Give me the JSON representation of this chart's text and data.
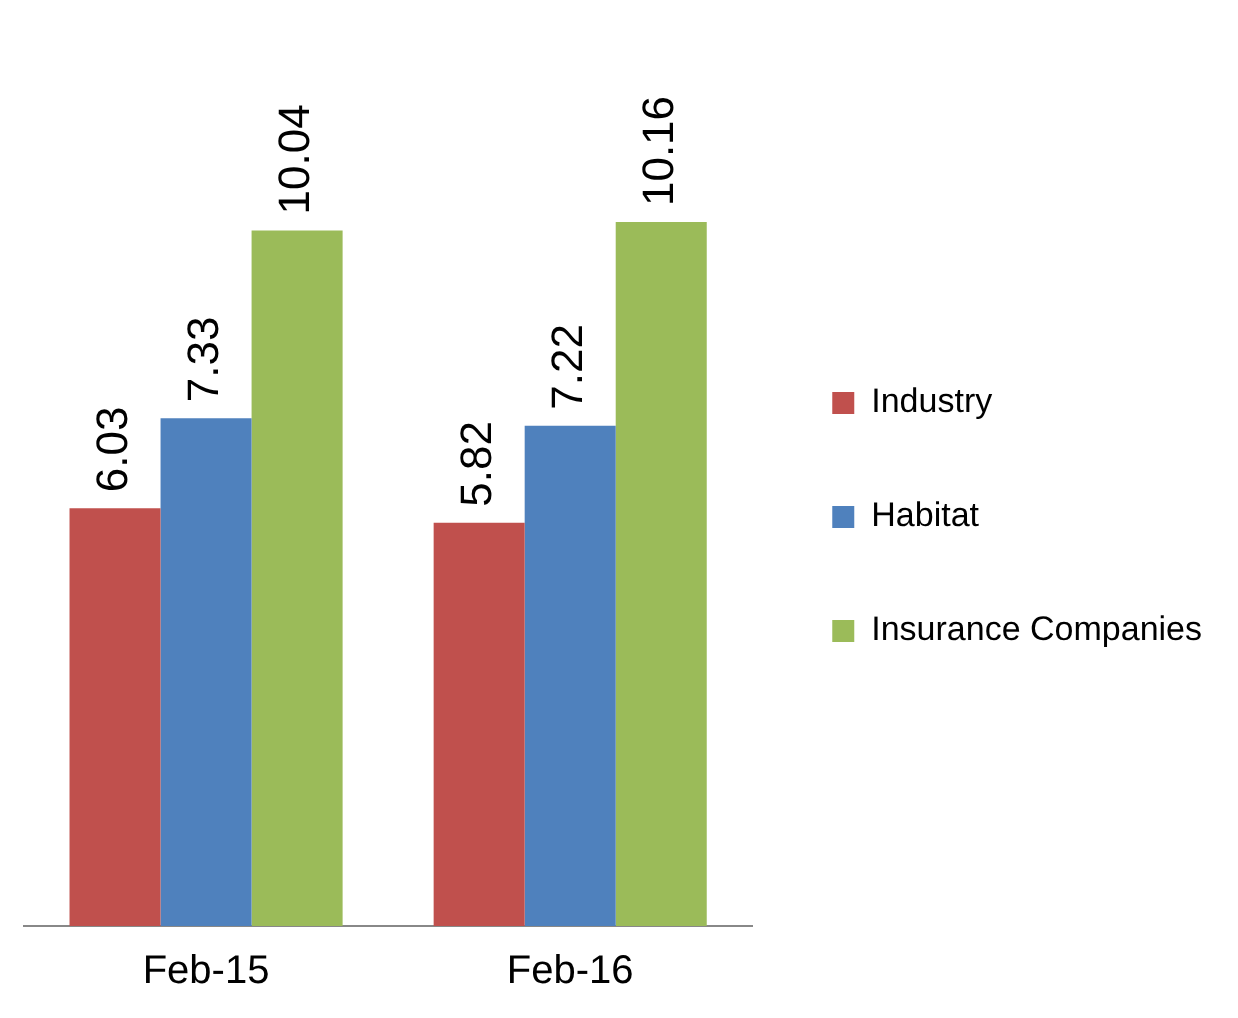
{
  "chart_data": {
    "type": "bar",
    "categories": [
      "Feb-15",
      "Feb-16"
    ],
    "series": [
      {
        "name": "Industry",
        "color": "#c0504d",
        "values": [
          6.03,
          5.82
        ]
      },
      {
        "name": "Habitat",
        "color": "#4f81bd",
        "values": [
          7.33,
          7.22
        ]
      },
      {
        "name": "Insurance Companies",
        "color": "#9bbb59",
        "values": [
          10.04,
          10.16
        ]
      }
    ],
    "data_labels": true,
    "legend": "right",
    "grid": false
  }
}
